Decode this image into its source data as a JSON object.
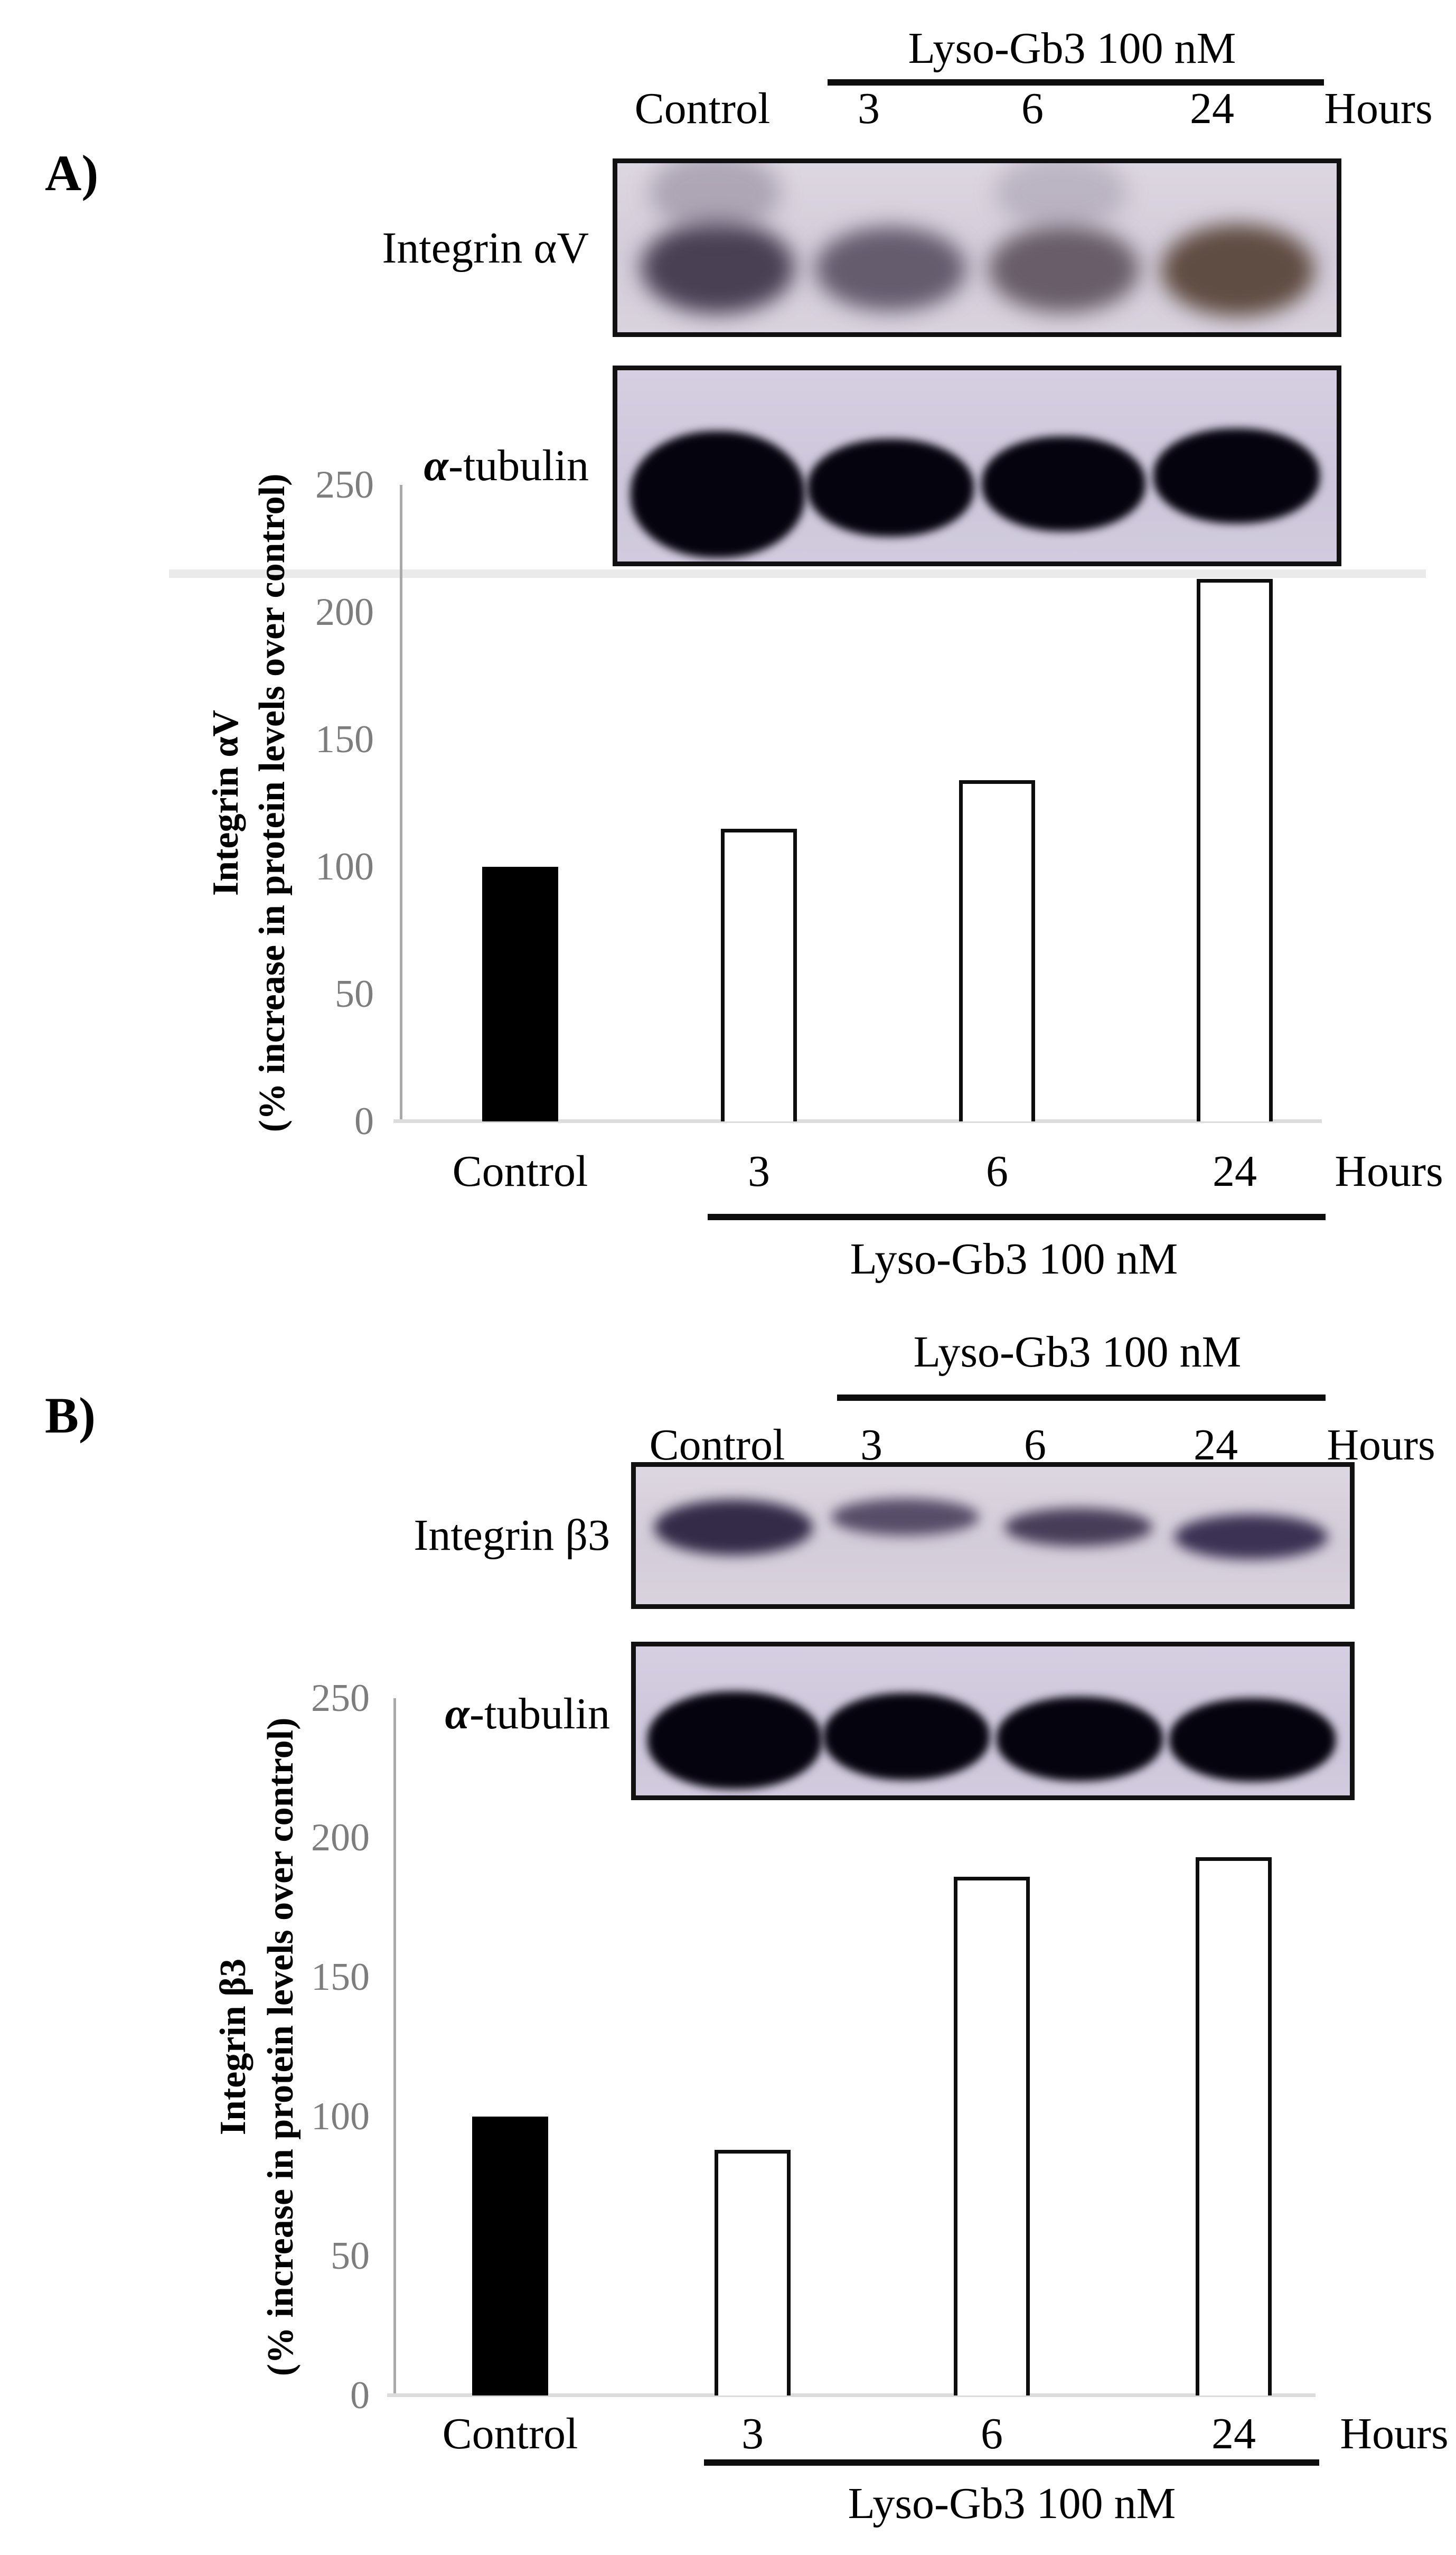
{
  "panels": [
    {
      "label": "A)",
      "header": {
        "treatment": "Lyso-Gb3 100 nM",
        "control": "Control",
        "t3": "3",
        "t6": "6",
        "t24": "24",
        "unit": "Hours"
      },
      "blots": [
        {
          "label": "Integrin αV"
        },
        {
          "label_alpha": "α",
          "label_rest": "-tubulin"
        }
      ]
    },
    {
      "label": "B)",
      "header": {
        "treatment": "Lyso-Gb3 100 nM",
        "control": "Control",
        "t3": "3",
        "t6": "6",
        "t24": "24",
        "unit": "Hours"
      },
      "blots": [
        {
          "label": "Integrin β3"
        },
        {
          "label_alpha": "α",
          "label_rest": "-tubulin"
        }
      ]
    }
  ],
  "chart_data": [
    {
      "type": "bar",
      "panel": "A",
      "title": "Integrin αV",
      "categories": [
        "Control",
        "3",
        "6",
        "24"
      ],
      "values": [
        100,
        115,
        134,
        213
      ],
      "bar_styles": [
        "filled-black",
        "open-white",
        "open-white",
        "open-white"
      ],
      "ylabel_line1": "Integrin αV",
      "ylabel_line2": "(% increase in protein levels over control)",
      "yticks": [
        0,
        50,
        100,
        150,
        200,
        250
      ],
      "ylim": [
        0,
        250
      ],
      "xlabel_unit": "Hours",
      "x_group_label": "Lyso-Gb3 100 nM",
      "grid": false,
      "legend": "none"
    },
    {
      "type": "bar",
      "panel": "B",
      "title": "Integrin β3",
      "categories": [
        "Control",
        "3",
        "6",
        "24"
      ],
      "values": [
        100,
        88,
        186,
        193
      ],
      "bar_styles": [
        "filled-black",
        "open-white",
        "open-white",
        "open-white"
      ],
      "ylabel_line1": "Integrin β3",
      "ylabel_line2": "(% increase in protein levels over control)",
      "yticks": [
        0,
        50,
        100,
        150,
        200,
        250
      ],
      "ylim": [
        0,
        250
      ],
      "xlabel_unit": "Hours",
      "x_group_label": "Lyso-Gb3 100 nM",
      "grid": false,
      "legend": "none"
    }
  ]
}
